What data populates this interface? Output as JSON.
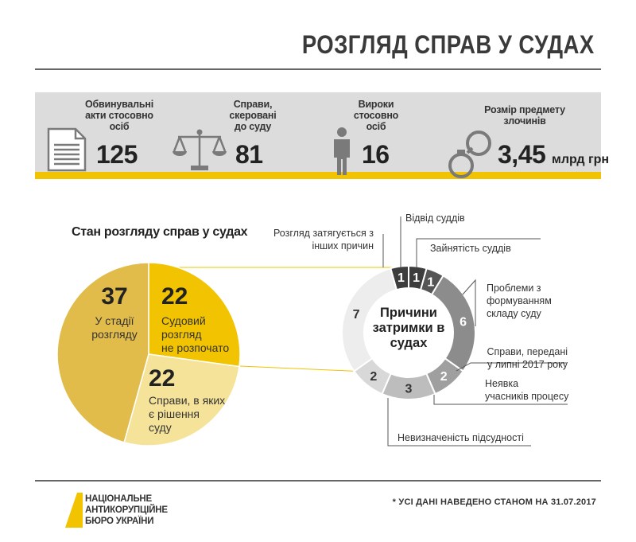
{
  "header": {
    "title": "РОЗГЛЯД СПРАВ У СУДАХ"
  },
  "stats": [
    {
      "label": "Обвинувальні\nакти стосовно\nосіб",
      "value": "125",
      "unit": "",
      "icon": "document-icon"
    },
    {
      "label": "Справи,\nскеровані\nдо суду",
      "value": "81",
      "unit": "",
      "icon": "scales-icon"
    },
    {
      "label": "Вироки\nстосовно\nосіб",
      "value": "16",
      "unit": "",
      "icon": "person-icon"
    },
    {
      "label": "Розмір предмету\nзлочинів",
      "value": "3,45",
      "unit": "млрд грн",
      "icon": "handcuffs-icon"
    }
  ],
  "colors": {
    "accent": "#f2c300",
    "pie_dark": "#e2bc4a",
    "pie_mid": "#f2c300",
    "pie_light": "#f6e39a",
    "donut_dark": "#3d3d3d",
    "donut_grey": "#8c8c8c",
    "donut_light": "#bdbdbd",
    "donut_pale": "#e9e9e9"
  },
  "chart_data": [
    {
      "type": "pie",
      "title": "Стан розгляду справ у судах",
      "slices": [
        {
          "value": 37,
          "label": "У стадії\nрозгляду",
          "color": "#e2bc4a"
        },
        {
          "value": 22,
          "label": "Судовий\nрозгляд\nне розпочато",
          "color": "#f2c300"
        },
        {
          "value": 22,
          "label": "Справи, в яких\nє рішення\nсуду",
          "color": "#f6e39a"
        }
      ]
    },
    {
      "type": "pie",
      "title": "Причини\nзатримки в\nсудах",
      "slices": [
        {
          "value": 1,
          "label": "Відвід суддів",
          "color": "#3d3d3d"
        },
        {
          "value": 1,
          "label": "Зайнятість суддів",
          "color": "#555555"
        },
        {
          "value": 6,
          "label": "Проблеми з\nформуванням\nскладу суду",
          "color": "#8c8c8c"
        },
        {
          "value": 2,
          "label": "Справи, передані\nу липні 2017 року",
          "color": "#9f9f9f"
        },
        {
          "value": 3,
          "label": "Неявка\nучасників процесу",
          "color": "#bdbdbd"
        },
        {
          "value": 2,
          "label": "Невизначеність підсудності",
          "color": "#d8d8d8"
        },
        {
          "value": 7,
          "label": "",
          "color": "#ededed"
        },
        {
          "value": 1,
          "label": "Розгляд затягується з\nінших причин",
          "color": "#3d3d3d"
        }
      ]
    }
  ],
  "footer": {
    "logo": "НАЦІОНАЛЬНЕ\nАНТИКОРУПЦІЙНЕ\nБЮРО УКРАЇНИ",
    "note": "* УСІ ДАНІ НАВЕДЕНО СТАНОМ НА 31.07.2017"
  }
}
